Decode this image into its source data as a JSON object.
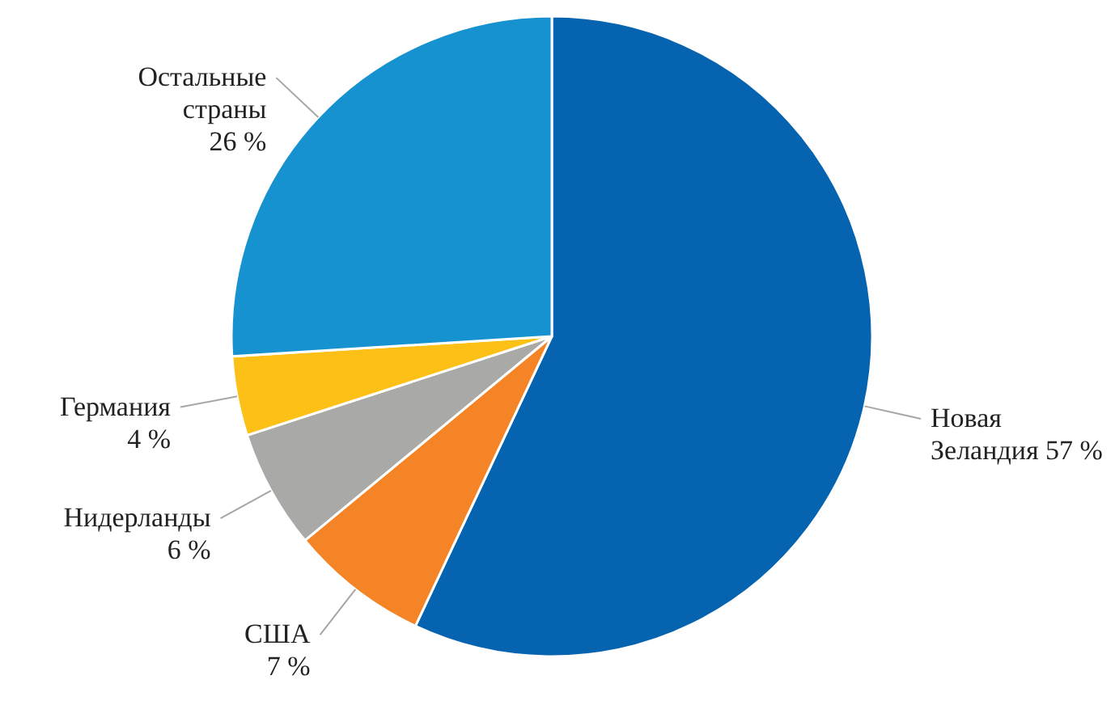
{
  "chart_data": {
    "type": "pie",
    "categories": [
      "Новая Зеландия",
      "США",
      "Нидерланды",
      "Германия",
      "Остальные страны"
    ],
    "values": [
      57,
      7,
      6,
      4,
      26
    ],
    "value_labels": [
      "57 %",
      "7 %",
      "6 %",
      "4 %",
      "26 %"
    ],
    "colors": [
      "#0563b0",
      "#f58426",
      "#a9a9a7",
      "#fcc016",
      "#1592cf"
    ]
  }
}
